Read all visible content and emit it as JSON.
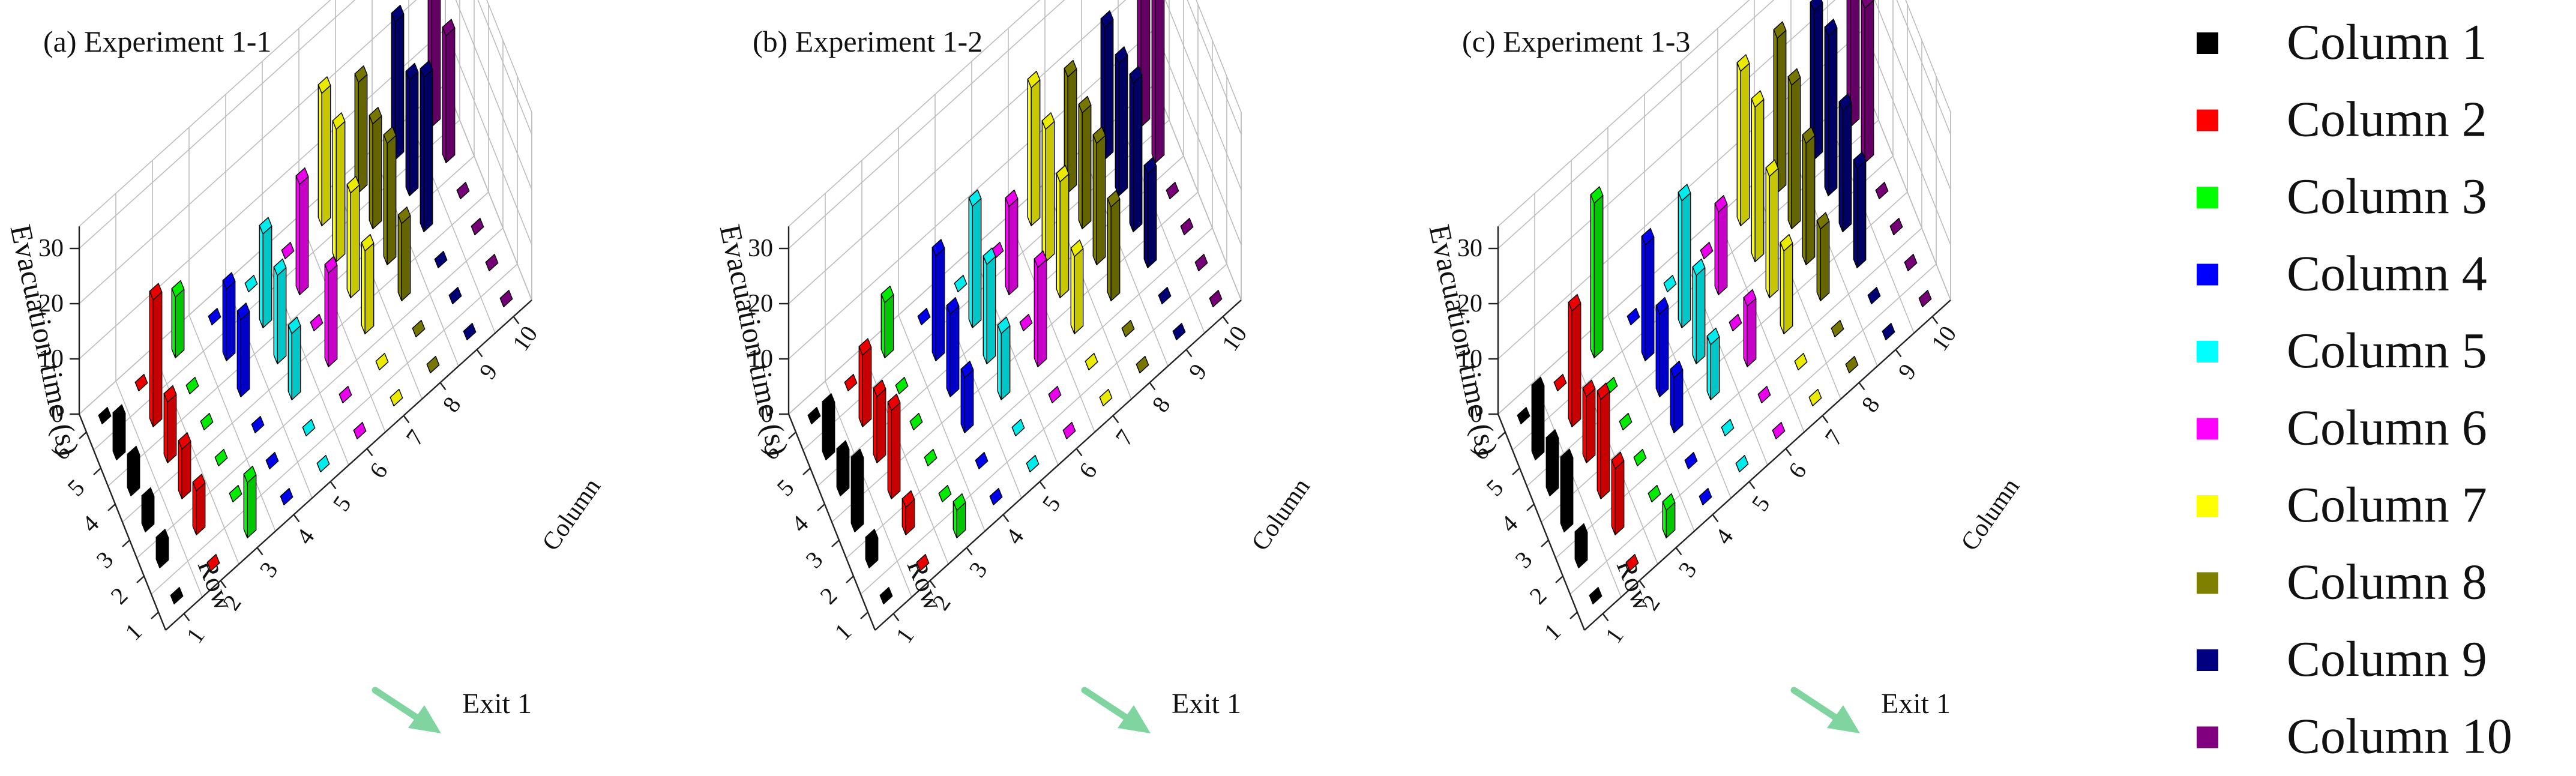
{
  "axis_labels": {
    "z": "Evacuation time (s)",
    "row": "Row",
    "column": "Column"
  },
  "exit_label": "Exit 1",
  "z_ticks": [
    0,
    10,
    20,
    30
  ],
  "row_ticks": [
    1,
    2,
    3,
    4,
    5,
    6
  ],
  "column_ticks": [
    1,
    2,
    3,
    4,
    5,
    6,
    7,
    8,
    9,
    10
  ],
  "legend": [
    {
      "label": "Column 1",
      "color": "#000000"
    },
    {
      "label": "Column 2",
      "color": "#ff0000"
    },
    {
      "label": "Column 3",
      "color": "#00ff00"
    },
    {
      "label": "Column 4",
      "color": "#0000ff"
    },
    {
      "label": "Column 5",
      "color": "#00ffff"
    },
    {
      "label": "Column 6",
      "color": "#ff00ff"
    },
    {
      "label": "Column 7",
      "color": "#ffff00"
    },
    {
      "label": "Column 8",
      "color": "#808000"
    },
    {
      "label": "Column 9",
      "color": "#000080"
    },
    {
      "label": "Column 10",
      "color": "#800080"
    }
  ],
  "chart_data": [
    {
      "type": "bar3d",
      "title": "(a) Experiment 1-1",
      "zlabel": "Evacuation time (s)",
      "xlabel": "Row",
      "ylabel": "Column",
      "zlim": [
        0,
        35
      ],
      "rows": [
        1,
        2,
        3,
        4,
        5,
        6
      ],
      "columns": [
        1,
        2,
        3,
        4,
        5,
        6,
        7,
        8,
        9,
        10
      ],
      "values": [
        [
          0,
          0,
          10,
          0,
          0,
          0,
          0,
          0,
          0,
          0
        ],
        [
          4,
          8,
          0,
          0,
          0,
          0,
          0,
          0,
          0,
          0
        ],
        [
          5,
          9,
          0,
          0,
          12,
          17,
          15,
          14,
          0,
          0
        ],
        [
          6,
          11,
          0,
          14,
          16,
          0,
          19,
          22,
          28,
          0
        ],
        [
          7,
          23,
          0,
          13,
          17,
          20,
          24,
          19,
          21,
          23
        ],
        [
          0,
          0,
          11,
          0,
          0,
          0,
          24,
          20,
          25,
          25
        ]
      ]
    },
    {
      "type": "bar3d",
      "title": "(b) Experiment 1-2",
      "zlabel": "Evacuation time (s)",
      "xlabel": "Row",
      "ylabel": "Column",
      "zlim": [
        0,
        35
      ],
      "rows": [
        1,
        2,
        3,
        4,
        5,
        6
      ],
      "columns": [
        1,
        2,
        3,
        4,
        5,
        6,
        7,
        8,
        9,
        10
      ],
      "values": [
        [
          0,
          0,
          5,
          0,
          0,
          0,
          0,
          0,
          0,
          0
        ],
        [
          4,
          5,
          0,
          0,
          0,
          0,
          0,
          0,
          0,
          0
        ],
        [
          12,
          16,
          0,
          10,
          12,
          18,
          14,
          17,
          17,
          0
        ],
        [
          7,
          12,
          0,
          15,
          18,
          0,
          21,
          22,
          27,
          0
        ],
        [
          9,
          13,
          0,
          19,
          22,
          16,
          24,
          21,
          24,
          34
        ],
        [
          0,
          0,
          10,
          0,
          0,
          0,
          25,
          21,
          24,
          26
        ]
      ]
    },
    {
      "type": "bar3d",
      "title": "(c) Experiment 1-3",
      "zlabel": "Evacuation time (s)",
      "xlabel": "Row",
      "ylabel": "Column",
      "zlim": [
        0,
        35
      ],
      "rows": [
        1,
        2,
        3,
        4,
        5,
        6
      ],
      "columns": [
        1,
        2,
        3,
        4,
        5,
        6,
        7,
        8,
        9,
        10
      ],
      "values": [
        [
          0,
          0,
          5,
          0,
          0,
          0,
          0,
          0,
          0,
          0
        ],
        [
          5,
          12,
          0,
          0,
          0,
          0,
          0,
          0,
          0,
          0
        ],
        [
          12,
          18,
          0,
          10,
          10,
          11,
          15,
          13,
          18,
          0
        ],
        [
          9,
          12,
          0,
          15,
          16,
          0,
          22,
          22,
          22,
          0
        ],
        [
          12,
          21,
          0,
          21,
          23,
          15,
          28,
          26,
          29,
          28
        ],
        [
          0,
          0,
          28,
          0,
          0,
          0,
          28,
          28,
          27,
          30
        ]
      ]
    }
  ]
}
